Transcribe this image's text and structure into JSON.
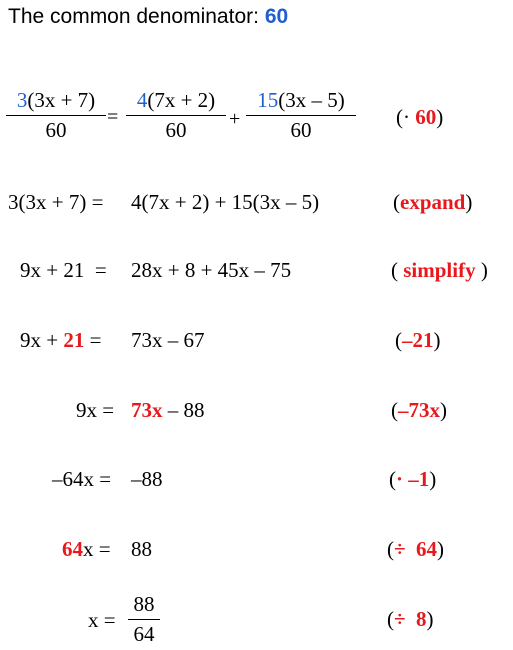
{
  "title": {
    "prefix": "The common denominator:",
    "value": "60"
  },
  "step1": {
    "lhs_coef": "3",
    "lhs_rest": "(3x + 7)",
    "lhs_den": "60",
    "equals": "=",
    "t1_coef": "4",
    "t1_rest": "(7x + 2)",
    "t1_den": "60",
    "plus": "+",
    "t2_coef": "15",
    "t2_rest": "(3x – 5)",
    "t2_den": "60",
    "note_open": "(·",
    "note_val": "60",
    "note_close": ")"
  },
  "step2": {
    "lhs": "3(3x + 7) =",
    "rhs": "4(7x + 2) + 15(3x – 5)",
    "note_open": "(",
    "note_val": "expand",
    "note_close": ")"
  },
  "step3": {
    "lhs": "9x + 21  =",
    "rhs": "28x + 8 + 45x – 75",
    "note_open": "( ",
    "note_val": "simplify",
    "note_close": " )"
  },
  "step4": {
    "lhs_a": "9x + ",
    "lhs_b": "21",
    "lhs_c": " =",
    "rhs": "73x – 67",
    "note_open": "(",
    "note_val": "–21",
    "note_close": ")"
  },
  "step5": {
    "lhs": "9x =",
    "rhs_a": "73x",
    "rhs_b": " – 88",
    "note_open": "(",
    "note_val": "–73x",
    "note_close": ")"
  },
  "step6": {
    "lhs": "–64x =",
    "rhs": "–88",
    "note_open": "(",
    "note_val": "· –1",
    "note_close": ")"
  },
  "step7": {
    "lhs_a": "64",
    "lhs_b": "x =",
    "rhs": "88",
    "note_open": "(",
    "note_val": "÷  64",
    "note_close": ")"
  },
  "step8": {
    "lhs": "x =",
    "num": "88",
    "den": "64",
    "note_open": "(",
    "note_val": "÷  8",
    "note_close": ")"
  },
  "colors": {
    "blue": "#1f5fd0",
    "red": "#e8191d"
  }
}
